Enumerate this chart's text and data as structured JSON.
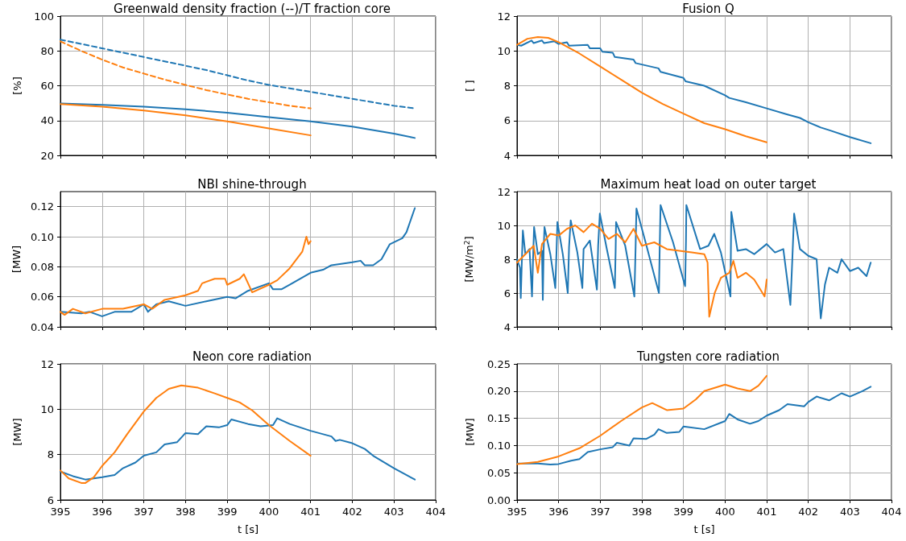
{
  "chart_data": [
    {
      "type": "line",
      "title": "Greenwald density fraction (--)/T fraction core",
      "ylabel": "[%]",
      "xlim": [
        395,
        404
      ],
      "xticks": [
        395,
        396,
        397,
        398,
        399,
        400,
        401,
        402,
        403,
        404
      ],
      "ylim": [
        20,
        100
      ],
      "yticks": [
        20,
        40,
        60,
        80,
        100
      ],
      "grid": true,
      "tick_labels": "y",
      "marker": "none",
      "series": [
        {
          "color": "#1f77b4",
          "line_style": "dashed",
          "x": [
            395,
            395.5,
            396,
            396.5,
            397,
            397.5,
            398,
            398.5,
            399,
            399.5,
            400,
            400.5,
            401,
            401.5,
            402,
            402.5,
            403,
            403.5
          ],
          "values": [
            86.5,
            84,
            81.5,
            79,
            76.5,
            74,
            71.5,
            69,
            66,
            63,
            60.5,
            58.5,
            56.5,
            54.5,
            52.5,
            50.5,
            48.5,
            47
          ]
        },
        {
          "color": "#ff7f0e",
          "line_style": "dashed",
          "x": [
            395,
            395.5,
            396,
            396.5,
            397,
            397.5,
            398,
            398.5,
            399,
            399.5,
            400,
            400.5,
            401
          ],
          "values": [
            85.5,
            80,
            75,
            70.5,
            67,
            63.5,
            60.5,
            57.5,
            55,
            52.5,
            50.5,
            48.5,
            47
          ]
        },
        {
          "color": "#1f77b4",
          "line_style": "solid",
          "x": [
            395,
            396,
            397,
            398,
            399,
            400,
            401,
            402,
            403,
            403.5
          ],
          "values": [
            49.8,
            49,
            48,
            46.5,
            44.5,
            42,
            39.5,
            36.5,
            32.5,
            30
          ]
        },
        {
          "color": "#ff7f0e",
          "line_style": "solid",
          "x": [
            395,
            396,
            397,
            398,
            399,
            400,
            401
          ],
          "values": [
            49.5,
            48,
            45.8,
            43,
            39.5,
            35.5,
            31.5
          ]
        }
      ]
    },
    {
      "type": "line",
      "title": "Fusion Q",
      "ylabel": "[ ]",
      "xlim": [
        395,
        404
      ],
      "xticks": [
        395,
        396,
        397,
        398,
        399,
        400,
        401,
        402,
        403,
        404
      ],
      "ylim": [
        4,
        12
      ],
      "yticks": [
        4,
        6,
        8,
        10,
        12
      ],
      "grid": true,
      "tick_labels": "y",
      "marker": "none",
      "series": [
        {
          "color": "#1f77b4",
          "x": [
            395,
            395.1,
            395.35,
            395.4,
            395.6,
            395.65,
            395.9,
            396,
            396.2,
            396.25,
            396.7,
            396.75,
            397,
            397.05,
            397.3,
            397.35,
            397.8,
            397.85,
            398.4,
            398.45,
            399,
            399.05,
            399.5,
            400,
            400.1,
            400.5,
            401,
            401.5,
            401.8,
            402,
            402.3,
            402.5,
            403,
            403.5
          ],
          "values": [
            10.35,
            10.3,
            10.6,
            10.45,
            10.6,
            10.45,
            10.55,
            10.4,
            10.5,
            10.3,
            10.35,
            10.15,
            10.15,
            9.95,
            9.9,
            9.65,
            9.5,
            9.3,
            9.0,
            8.8,
            8.45,
            8.25,
            8.0,
            7.45,
            7.3,
            7.05,
            6.7,
            6.35,
            6.15,
            5.9,
            5.6,
            5.45,
            5.05,
            4.7
          ]
        },
        {
          "color": "#ff7f0e",
          "x": [
            395,
            395.25,
            395.5,
            395.75,
            396,
            396.5,
            397,
            397.5,
            398,
            398.5,
            399,
            399.5,
            400,
            400.5,
            401
          ],
          "values": [
            10.35,
            10.7,
            10.8,
            10.75,
            10.5,
            9.85,
            9.1,
            8.35,
            7.6,
            6.95,
            6.4,
            5.85,
            5.5,
            5.1,
            4.75
          ]
        }
      ]
    },
    {
      "type": "line",
      "title": "NBI shine-through",
      "ylabel": "[MW]",
      "xlim": [
        395,
        404
      ],
      "xticks": [
        395,
        396,
        397,
        398,
        399,
        400,
        401,
        402,
        403,
        404
      ],
      "ylim": [
        0.04,
        0.13
      ],
      "yticks": [
        {
          "value": 0.04,
          "label": "0.04"
        },
        {
          "value": 0.06,
          "label": "0.06"
        },
        {
          "value": 0.08,
          "label": "0.08"
        },
        {
          "value": 0.1,
          "label": "0.10"
        },
        {
          "value": 0.12,
          "label": "0.12"
        }
      ],
      "grid": true,
      "tick_labels": "y",
      "marker": "none",
      "series": [
        {
          "color": "#1f77b4",
          "x": [
            395,
            395.5,
            395.7,
            396,
            396.3,
            396.7,
            397,
            397.1,
            397.3,
            397.6,
            398,
            398.5,
            399,
            399.2,
            399.5,
            400,
            400.1,
            400.3,
            400.5,
            401,
            401.3,
            401.5,
            402,
            402.2,
            402.3,
            402.5,
            402.7,
            402.9,
            403.2,
            403.3,
            403.5
          ],
          "values": [
            0.05,
            0.049,
            0.05,
            0.047,
            0.05,
            0.05,
            0.055,
            0.05,
            0.055,
            0.057,
            0.054,
            0.057,
            0.06,
            0.059,
            0.064,
            0.069,
            0.065,
            0.065,
            0.068,
            0.076,
            0.078,
            0.081,
            0.083,
            0.084,
            0.081,
            0.081,
            0.085,
            0.095,
            0.099,
            0.103,
            0.119
          ]
        },
        {
          "color": "#ff7f0e",
          "x": [
            395,
            395.1,
            395.3,
            395.6,
            396,
            396.5,
            397,
            397.2,
            397.5,
            398,
            398.3,
            398.4,
            398.7,
            398.95,
            399,
            399.3,
            399.4,
            399.6,
            400,
            400.2,
            400.5,
            400.8,
            400.9,
            400.95,
            401
          ],
          "values": [
            0.05,
            0.048,
            0.052,
            0.049,
            0.052,
            0.052,
            0.055,
            0.052,
            0.058,
            0.061,
            0.064,
            0.069,
            0.072,
            0.072,
            0.068,
            0.072,
            0.075,
            0.063,
            0.068,
            0.071,
            0.079,
            0.09,
            0.1,
            0.095,
            0.097
          ]
        }
      ]
    },
    {
      "type": "line",
      "title": "Maximum heat load on outer target",
      "ylabel": "[MW/m$^{2}$]",
      "xlim": [
        395,
        404
      ],
      "xticks": [
        395,
        396,
        397,
        398,
        399,
        400,
        401,
        402,
        403,
        404
      ],
      "ylim": [
        4,
        12
      ],
      "yticks": [
        4,
        6,
        8,
        10,
        12
      ],
      "grid": true,
      "tick_labels": "y",
      "marker": "none",
      "series": [
        {
          "color": "#1f77b4",
          "x": [
            395,
            395.07,
            395.09,
            395.12,
            395.14,
            395.2,
            395.3,
            395.36,
            395.39,
            395.41,
            395.5,
            395.6,
            395.62,
            395.64,
            395.66,
            395.8,
            395.92,
            395.95,
            395.97,
            396.1,
            396.22,
            396.25,
            396.29,
            396.45,
            396.57,
            396.6,
            396.75,
            396.92,
            396.95,
            396.99,
            397.15,
            397.35,
            397.37,
            397.38,
            397.6,
            397.82,
            397.85,
            397.87,
            398.1,
            398.41,
            398.43,
            398.45,
            398.75,
            399.04,
            399.06,
            399.07,
            399.4,
            399.6,
            399.74,
            399.9,
            400.13,
            400.14,
            400.15,
            400.3,
            400.5,
            400.7,
            401,
            401.2,
            401.4,
            401.57,
            401.62,
            401.66,
            401.8,
            402,
            402.2,
            402.3,
            402.4,
            402.5,
            402.7,
            402.8,
            403,
            403.2,
            403.4,
            403.5
          ],
          "values": [
            8.0,
            7.5,
            5.7,
            8.2,
            9.7,
            8.3,
            8.6,
            5.8,
            8.4,
            9.9,
            8.3,
            8.5,
            5.6,
            8.6,
            9.9,
            8.3,
            6.3,
            8.5,
            10.2,
            8.3,
            6.0,
            8.7,
            10.3,
            8.4,
            6.3,
            8.6,
            9.1,
            6.2,
            8.8,
            10.7,
            8.7,
            6.3,
            8.5,
            10.2,
            8.8,
            5.8,
            8.7,
            11.0,
            8.9,
            6.0,
            8.8,
            11.2,
            9.0,
            6.4,
            9.0,
            11.2,
            8.6,
            8.8,
            9.5,
            8.4,
            5.8,
            8.6,
            10.8,
            8.5,
            8.6,
            8.3,
            8.9,
            8.4,
            8.6,
            5.3,
            8.2,
            10.7,
            8.6,
            8.2,
            8.0,
            4.5,
            6.5,
            7.5,
            7.2,
            8.0,
            7.3,
            7.5,
            7.0,
            7.8
          ]
        },
        {
          "color": "#ff7f0e",
          "x": [
            395,
            395.2,
            395.4,
            395.5,
            395.6,
            395.8,
            396,
            396.2,
            396.4,
            396.6,
            396.8,
            397,
            397.2,
            397.4,
            397.6,
            397.8,
            398,
            398.3,
            398.6,
            398.9,
            399.2,
            399.5,
            399.58,
            399.62,
            399.75,
            399.9,
            400.1,
            400.2,
            400.3,
            400.5,
            400.7,
            400.85,
            400.95,
            401
          ],
          "values": [
            7.8,
            8.3,
            8.8,
            7.2,
            8.9,
            9.5,
            9.4,
            9.8,
            10.0,
            9.6,
            10.1,
            9.8,
            9.2,
            9.5,
            9.0,
            9.8,
            8.8,
            9.0,
            8.6,
            8.5,
            8.4,
            8.3,
            7.8,
            4.6,
            6.0,
            6.9,
            7.2,
            7.9,
            6.9,
            7.2,
            6.8,
            6.2,
            5.8,
            6.8
          ]
        }
      ]
    },
    {
      "type": "line",
      "title": "Neon core radiation",
      "xlabel": "t [s]",
      "ylabel": "[MW]",
      "xlim": [
        395,
        404
      ],
      "xticks": [
        395,
        396,
        397,
        398,
        399,
        400,
        401,
        402,
        403,
        404
      ],
      "ylim": [
        6,
        12
      ],
      "yticks": [
        6,
        8,
        10,
        12
      ],
      "grid": true,
      "marker": "none",
      "series": [
        {
          "color": "#1f77b4",
          "x": [
            395,
            395.3,
            395.6,
            395.8,
            396,
            396.3,
            396.5,
            396.8,
            397,
            397.3,
            397.5,
            397.8,
            398,
            398.3,
            398.5,
            398.8,
            399,
            399.1,
            399.5,
            399.8,
            400.1,
            400.2,
            400.5,
            401,
            401.5,
            401.6,
            401.7,
            402,
            402.3,
            402.5,
            403,
            403.5
          ],
          "values": [
            7.25,
            7.05,
            6.9,
            6.95,
            7.0,
            7.1,
            7.4,
            7.65,
            7.95,
            8.1,
            8.45,
            8.55,
            8.95,
            8.9,
            9.25,
            9.2,
            9.3,
            9.55,
            9.35,
            9.25,
            9.3,
            9.6,
            9.35,
            9.05,
            8.8,
            8.6,
            8.65,
            8.5,
            8.25,
            7.95,
            7.4,
            6.9
          ]
        },
        {
          "color": "#ff7f0e",
          "x": [
            395,
            395.2,
            395.5,
            395.6,
            395.8,
            396,
            396.3,
            396.6,
            397,
            397.3,
            397.6,
            397.9,
            398.3,
            398.7,
            399,
            399.3,
            399.6,
            400,
            400.5,
            401
          ],
          "values": [
            7.3,
            6.95,
            6.75,
            6.75,
            7.0,
            7.5,
            8.1,
            8.9,
            9.9,
            10.5,
            10.9,
            11.05,
            10.95,
            10.7,
            10.5,
            10.3,
            9.95,
            9.3,
            8.6,
            7.95
          ]
        }
      ]
    },
    {
      "type": "line",
      "title": "Tungsten core radiation",
      "xlabel": "t [s]",
      "ylabel": "[MW]",
      "xlim": [
        395,
        404
      ],
      "xticks": [
        395,
        396,
        397,
        398,
        399,
        400,
        401,
        402,
        403,
        404
      ],
      "ylim": [
        0,
        0.25
      ],
      "yticks": [
        {
          "value": 0,
          "label": "0.00"
        },
        {
          "value": 0.05,
          "label": "0.05"
        },
        {
          "value": 0.1,
          "label": "0.10"
        },
        {
          "value": 0.15,
          "label": "0.15"
        },
        {
          "value": 0.2,
          "label": "0.20"
        },
        {
          "value": 0.25,
          "label": "0.25"
        }
      ],
      "grid": true,
      "marker": "none",
      "series": [
        {
          "color": "#1f77b4",
          "x": [
            395,
            395.5,
            395.8,
            396,
            396.3,
            396.5,
            396.7,
            397,
            397.3,
            397.4,
            397.7,
            397.8,
            398.1,
            398.3,
            398.4,
            398.6,
            398.9,
            399,
            399.5,
            400,
            400.1,
            400.3,
            400.6,
            400.8,
            401,
            401.3,
            401.5,
            401.9,
            402,
            402.2,
            402.5,
            402.8,
            403,
            403.3,
            403.5
          ],
          "values": [
            0.067,
            0.067,
            0.065,
            0.066,
            0.072,
            0.075,
            0.088,
            0.093,
            0.097,
            0.105,
            0.1,
            0.113,
            0.112,
            0.12,
            0.13,
            0.123,
            0.125,
            0.135,
            0.13,
            0.145,
            0.158,
            0.148,
            0.14,
            0.145,
            0.155,
            0.165,
            0.176,
            0.172,
            0.18,
            0.19,
            0.183,
            0.196,
            0.19,
            0.2,
            0.208
          ]
        },
        {
          "color": "#ff7f0e",
          "x": [
            395,
            395.5,
            396,
            396.5,
            397,
            397.5,
            398,
            398.25,
            398.6,
            399,
            399.3,
            399.5,
            400,
            400.3,
            400.6,
            400.8,
            401
          ],
          "values": [
            0.066,
            0.07,
            0.08,
            0.095,
            0.118,
            0.145,
            0.17,
            0.178,
            0.165,
            0.168,
            0.185,
            0.2,
            0.212,
            0.205,
            0.2,
            0.21,
            0.228
          ]
        }
      ]
    }
  ]
}
